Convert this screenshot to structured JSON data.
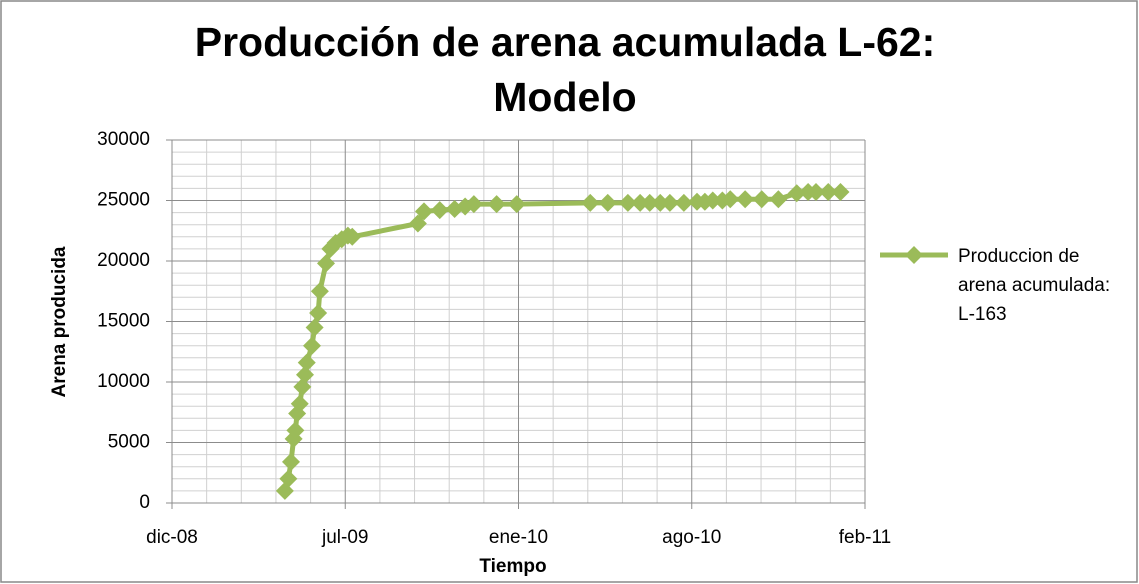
{
  "chart_data": {
    "type": "line",
    "title": "Producción de arena acumulada L-62: Modelo",
    "title_lines": [
      "Producción de arena acumulada L-62:",
      "Modelo"
    ],
    "x_label": "Tiempo",
    "y_label": "Arena producida",
    "xlim": [
      39800,
      40592
    ],
    "xticks": [
      {
        "value": 39800,
        "label": "dic-08"
      },
      {
        "value": 39998,
        "label": "jul-09"
      },
      {
        "value": 40196,
        "label": "ene-10"
      },
      {
        "value": 40394,
        "label": "ago-10"
      },
      {
        "value": 40592,
        "label": "feb-11"
      }
    ],
    "ylim": [
      0,
      30000
    ],
    "yticks": [
      0,
      5000,
      10000,
      15000,
      20000,
      25000,
      30000
    ],
    "grid": true,
    "legend": "right",
    "series": [
      {
        "name": "Produccion de arena acumulada: L-163",
        "color": "#9bbb59",
        "x": [
          39929,
          39933,
          39936,
          39939,
          39941,
          39943,
          39946,
          39949,
          39952,
          39954,
          39960,
          39963,
          39967,
          39969,
          39976,
          39981,
          39987,
          39994,
          40001,
          40006,
          40081,
          40088,
          40106,
          40123,
          40135,
          40145,
          40171,
          40194,
          40278,
          40298,
          40321,
          40335,
          40346,
          40358,
          40369,
          40385,
          40400,
          40409,
          40418,
          40429,
          40438,
          40455,
          40474,
          40493,
          40514,
          40527,
          40536,
          40550,
          40564
        ],
        "values": [
          1000,
          2000,
          3400,
          5300,
          6000,
          7400,
          8200,
          9600,
          10600,
          11600,
          13000,
          14500,
          15700,
          17500,
          19800,
          21000,
          21500,
          21800,
          22100,
          22000,
          23100,
          24100,
          24200,
          24300,
          24500,
          24700,
          24700,
          24700,
          24800,
          24800,
          24800,
          24800,
          24800,
          24800,
          24800,
          24800,
          24900,
          24900,
          25000,
          25000,
          25100,
          25100,
          25100,
          25100,
          25600,
          25700,
          25700,
          25700,
          25700
        ]
      }
    ]
  }
}
